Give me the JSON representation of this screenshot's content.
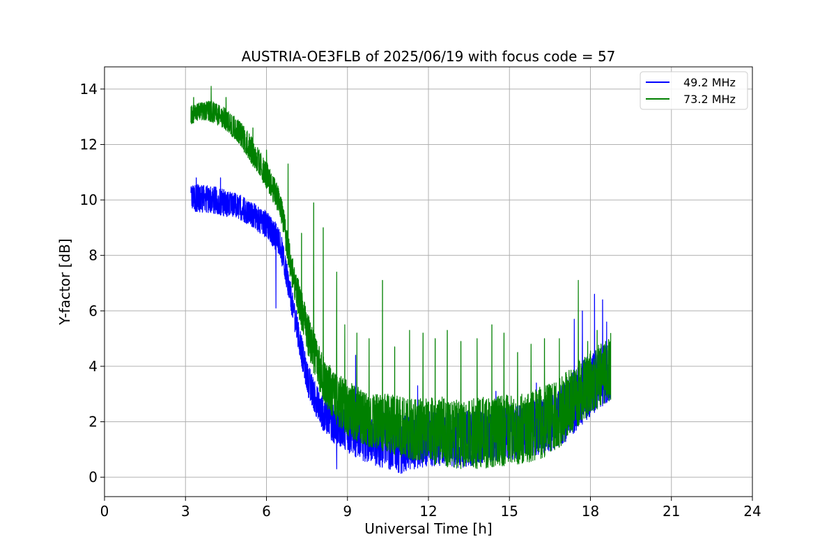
{
  "chart_data": {
    "type": "line",
    "title": "AUSTRIA-OE3FLB of 2025/06/19 with focus code = 57",
    "xlabel": "Universal Time [h]",
    "ylabel": "Y-factor [dB]",
    "xlim": [
      0,
      24
    ],
    "ylim": [
      -0.7,
      14.8
    ],
    "x_ticks": [
      0,
      3,
      6,
      9,
      12,
      15,
      18,
      21,
      24
    ],
    "y_ticks": [
      0,
      2,
      4,
      6,
      8,
      10,
      12,
      14
    ],
    "grid": true,
    "legend_position": "top-right",
    "series": [
      {
        "name": "49.2 MHz",
        "color": "#0000ff",
        "envelope": {
          "x": [
            3.2,
            4.0,
            4.5,
            5.0,
            5.5,
            6.0,
            6.5,
            7.0,
            7.5,
            8.0,
            8.5,
            9.0,
            9.5,
            10.0,
            10.5,
            11.0,
            11.5,
            12.0,
            12.5,
            13.0,
            13.5,
            14.0,
            14.5,
            15.0,
            15.5,
            16.0,
            16.5,
            17.0,
            17.5,
            18.0,
            18.5,
            18.75
          ],
          "low": [
            9.6,
            9.5,
            9.4,
            9.3,
            9.0,
            8.6,
            8.0,
            5.5,
            3.0,
            1.8,
            1.2,
            0.9,
            0.6,
            0.4,
            0.3,
            0.1,
            0.3,
            0.4,
            0.4,
            0.3,
            0.4,
            0.5,
            0.6,
            0.6,
            0.7,
            0.8,
            0.9,
            1.2,
            1.7,
            2.2,
            2.6,
            2.8
          ],
          "high": [
            10.6,
            10.5,
            10.4,
            10.2,
            9.9,
            9.6,
            9.0,
            6.5,
            4.2,
            3.0,
            2.6,
            2.4,
            2.2,
            2.3,
            2.4,
            2.2,
            2.3,
            2.4,
            2.4,
            2.3,
            2.4,
            2.4,
            2.5,
            2.6,
            2.6,
            2.8,
            3.0,
            3.4,
            4.0,
            4.5,
            4.8,
            4.8
          ]
        },
        "spikes": [
          {
            "x": 3.4,
            "y": 10.8
          },
          {
            "x": 4.3,
            "y": 10.8
          },
          {
            "x": 6.35,
            "y": 6.1
          },
          {
            "x": 8.6,
            "y": 0.3
          },
          {
            "x": 9.3,
            "y": 4.4
          },
          {
            "x": 11.6,
            "y": 3.3
          },
          {
            "x": 14.5,
            "y": 3.1
          },
          {
            "x": 16.0,
            "y": 3.4
          },
          {
            "x": 17.4,
            "y": 5.7
          },
          {
            "x": 17.7,
            "y": 6.0
          },
          {
            "x": 18.15,
            "y": 6.6
          },
          {
            "x": 18.45,
            "y": 6.4
          },
          {
            "x": 18.6,
            "y": 5.6
          }
        ]
      },
      {
        "name": "73.2 MHz",
        "color": "#008000",
        "envelope": {
          "x": [
            3.2,
            3.5,
            4.0,
            4.5,
            5.0,
            5.5,
            6.0,
            6.5,
            7.0,
            7.5,
            8.0,
            8.5,
            9.0,
            9.5,
            10.0,
            10.5,
            11.0,
            11.5,
            12.0,
            12.5,
            13.0,
            13.5,
            14.0,
            14.5,
            15.0,
            15.5,
            16.0,
            16.5,
            17.0,
            17.5,
            18.0,
            18.5,
            18.75
          ],
          "low": [
            12.7,
            12.9,
            12.8,
            12.5,
            12.0,
            11.2,
            10.4,
            9.4,
            6.5,
            4.5,
            3.0,
            2.0,
            1.5,
            1.2,
            1.0,
            0.9,
            0.7,
            0.6,
            0.5,
            0.4,
            0.3,
            0.3,
            0.3,
            0.4,
            0.4,
            0.5,
            0.6,
            0.8,
            1.2,
            1.8,
            2.3,
            2.6,
            2.8
          ],
          "high": [
            13.4,
            13.5,
            13.6,
            13.3,
            12.9,
            12.2,
            11.4,
            10.4,
            7.8,
            6.0,
            4.6,
            3.8,
            3.5,
            3.2,
            3.0,
            3.0,
            2.9,
            2.8,
            2.9,
            2.9,
            2.8,
            2.8,
            2.9,
            2.9,
            3.0,
            3.0,
            3.2,
            3.4,
            3.8,
            4.2,
            4.6,
            4.9,
            5.0
          ]
        },
        "spikes": [
          {
            "x": 3.3,
            "y": 13.7
          },
          {
            "x": 3.95,
            "y": 14.1
          },
          {
            "x": 4.5,
            "y": 13.7
          },
          {
            "x": 5.5,
            "y": 12.6
          },
          {
            "x": 6.0,
            "y": 11.8
          },
          {
            "x": 6.8,
            "y": 11.3
          },
          {
            "x": 7.3,
            "y": 8.8
          },
          {
            "x": 7.75,
            "y": 9.9
          },
          {
            "x": 8.1,
            "y": 9.0
          },
          {
            "x": 8.6,
            "y": 7.4
          },
          {
            "x": 8.9,
            "y": 5.5
          },
          {
            "x": 9.35,
            "y": 5.2
          },
          {
            "x": 9.8,
            "y": 5.0
          },
          {
            "x": 10.3,
            "y": 7.1
          },
          {
            "x": 10.75,
            "y": 4.7
          },
          {
            "x": 11.3,
            "y": 5.3
          },
          {
            "x": 11.8,
            "y": 5.2
          },
          {
            "x": 12.25,
            "y": 5.0
          },
          {
            "x": 12.7,
            "y": 5.3
          },
          {
            "x": 13.2,
            "y": 4.9
          },
          {
            "x": 13.8,
            "y": 5.0
          },
          {
            "x": 14.35,
            "y": 5.5
          },
          {
            "x": 14.8,
            "y": 5.2
          },
          {
            "x": 15.3,
            "y": 4.5
          },
          {
            "x": 15.8,
            "y": 4.8
          },
          {
            "x": 16.3,
            "y": 5.0
          },
          {
            "x": 16.85,
            "y": 5.0
          },
          {
            "x": 17.55,
            "y": 7.1
          },
          {
            "x": 17.9,
            "y": 4.9
          },
          {
            "x": 18.25,
            "y": 5.3
          },
          {
            "x": 18.75,
            "y": 5.2
          }
        ]
      }
    ]
  }
}
